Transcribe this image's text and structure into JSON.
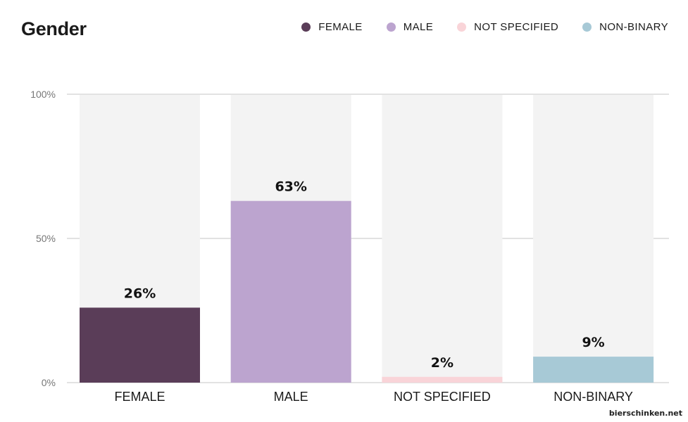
{
  "title": "Gender",
  "legend": [
    {
      "label": "FEMALE",
      "color": "#5a3d58"
    },
    {
      "label": "MALE",
      "color": "#bca4cf"
    },
    {
      "label": "NOT SPECIFIED",
      "color": "#f9d4d8"
    },
    {
      "label": "NON-BINARY",
      "color": "#a7c9d6"
    }
  ],
  "watermark": "bierschinken.net",
  "chart_data": {
    "type": "bar",
    "title": "Gender",
    "categories": [
      "FEMALE",
      "MALE",
      "NOT SPECIFIED",
      "NON-BINARY"
    ],
    "values": [
      26,
      63,
      2,
      9
    ],
    "value_labels": [
      "26%",
      "63%",
      "2%",
      "9%"
    ],
    "colors": [
      "#5a3d58",
      "#bca4cf",
      "#f9d4d8",
      "#a7c9d6"
    ],
    "background_bar_color": "#f3f3f3",
    "ylim": [
      0,
      100
    ],
    "yticks": [
      0,
      50,
      100
    ],
    "ytick_labels": [
      "0%",
      "50%",
      "100%"
    ],
    "grid": true,
    "legend_position": "top-right",
    "xlabel": "",
    "ylabel": ""
  }
}
